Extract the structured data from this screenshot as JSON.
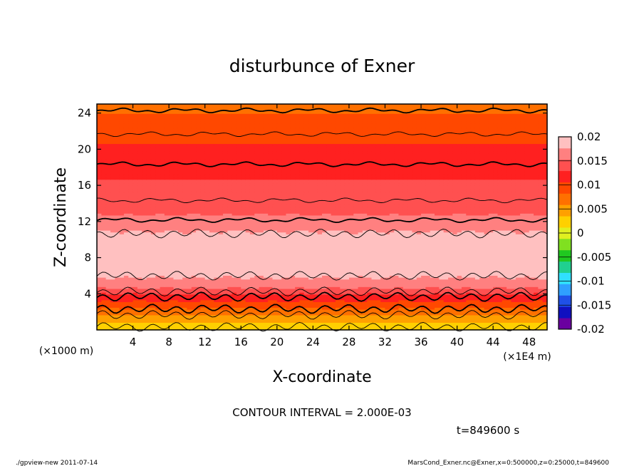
{
  "chart_data": {
    "type": "heatmap",
    "title": "disturbunce of Exner",
    "xlabel": "X-coordinate",
    "ylabel": "Z-coordinate",
    "x_unit_label": "(×1E4 m)",
    "y_unit_label": "(×1000 m)",
    "x_ticks": [
      4,
      8,
      12,
      16,
      20,
      24,
      28,
      32,
      36,
      40,
      44,
      48
    ],
    "y_ticks": [
      4,
      8,
      12,
      16,
      20,
      24
    ],
    "xlim": [
      0,
      50
    ],
    "ylim": [
      0,
      25
    ],
    "colorbar": {
      "labels": [
        "0.02",
        "0.015",
        "0.01",
        "0.005",
        "0",
        "-0.005",
        "-0.01",
        "-0.015",
        "-0.02"
      ],
      "levels": [
        0.02,
        0.015,
        0.01,
        0.005,
        0,
        -0.005,
        -0.01,
        -0.015,
        -0.02
      ],
      "colors": [
        "#6a00a0",
        "#1010c0",
        "#1f50e8",
        "#2fa0ff",
        "#30e0ff",
        "#20d090",
        "#20c820",
        "#80e020",
        "#e0f020",
        "#ffd000",
        "#ffa000",
        "#ff7000",
        "#ff4800",
        "#ff2020",
        "#ff5050",
        "#ff8080",
        "#ffc0c0"
      ]
    },
    "profile": {
      "z": [
        0,
        1,
        2,
        3,
        4,
        4.5,
        5,
        6,
        7,
        8,
        9,
        10,
        11,
        12,
        13,
        14,
        15,
        16,
        17,
        18,
        19,
        20,
        21,
        22,
        23,
        24,
        25
      ],
      "value": [
        0.001,
        0.004,
        0.007,
        0.01,
        0.013,
        0.015,
        0.016,
        0.018,
        0.0195,
        0.0198,
        0.0195,
        0.019,
        0.0175,
        0.0162,
        0.015,
        0.0142,
        0.0136,
        0.0132,
        0.0128,
        0.0122,
        0.0116,
        0.011,
        0.0104,
        0.0098,
        0.009,
        0.0082,
        0.0075
      ]
    },
    "contour_interval_text": "CONTOUR INTERVAL = 2.000E-03",
    "time_text": "t=849600 s"
  },
  "footer": {
    "left": "./gpview-new   2011-07-14",
    "right": "MarsCond_Exner.nc@Exner,x=0:500000,z=0:25000,t=849600"
  }
}
